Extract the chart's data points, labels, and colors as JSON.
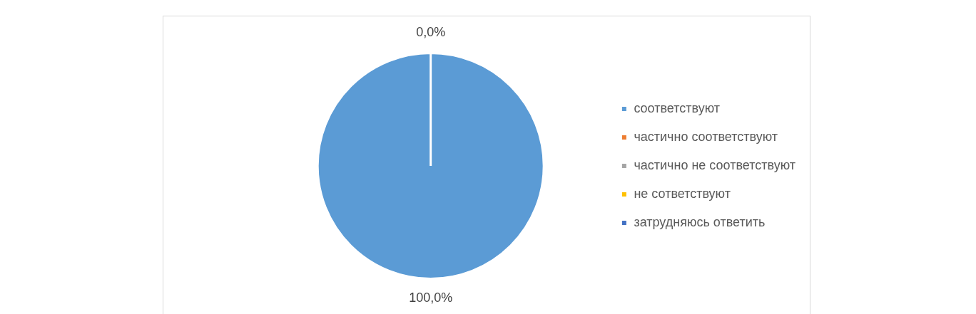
{
  "chart_data": {
    "type": "pie",
    "categories": [
      "соответствуют",
      "частично соответствуют",
      "частично не соответствуют",
      "не сответствуют",
      "затрудняюсь ответить"
    ],
    "values": [
      100,
      0,
      0,
      0,
      0
    ],
    "colors": [
      "#5b9bd5",
      "#ed7d31",
      "#a5a5a5",
      "#ffc000",
      "#4472c4"
    ],
    "value_labels": [
      "100,0%",
      "0,0%",
      null,
      null,
      null
    ],
    "legend": "right"
  }
}
